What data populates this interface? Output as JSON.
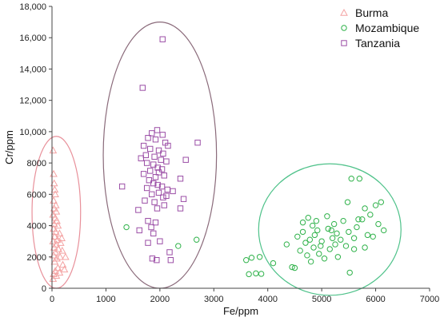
{
  "chart_data": {
    "type": "scatter",
    "xlabel": "Fe/ppm",
    "ylabel": "Cr/ppm",
    "xlim": [
      0,
      7000
    ],
    "ylim": [
      0,
      18000
    ],
    "xticks": [
      0,
      1000,
      2000,
      3000,
      4000,
      5000,
      6000,
      7000
    ],
    "yticks": [
      0,
      2000,
      4000,
      6000,
      8000,
      10000,
      12000,
      14000,
      16000,
      18000
    ],
    "xtick_labels": [
      "0",
      "1000",
      "2000",
      "3000",
      "4000",
      "5000",
      "6000",
      "7000"
    ],
    "ytick_labels": [
      "0",
      "2000",
      "4000",
      "6000",
      "8000",
      "10,000",
      "12,000",
      "14,000",
      "16,000",
      "18,000"
    ],
    "grid": false,
    "legend_position": "top-right",
    "series": [
      {
        "name": "Burma",
        "marker": "triangle",
        "color": "#f4a3a3",
        "points": [
          [
            20,
            8800
          ],
          [
            30,
            7300
          ],
          [
            40,
            6700
          ],
          [
            50,
            6300
          ],
          [
            60,
            6000
          ],
          [
            30,
            5600
          ],
          [
            70,
            5300
          ],
          [
            40,
            5100
          ],
          [
            80,
            4900
          ],
          [
            20,
            4700
          ],
          [
            60,
            4500
          ],
          [
            90,
            4300
          ],
          [
            40,
            4100
          ],
          [
            110,
            4000
          ],
          [
            30,
            3800
          ],
          [
            70,
            3600
          ],
          [
            140,
            3500
          ],
          [
            50,
            3300
          ],
          [
            100,
            3100
          ],
          [
            20,
            3000
          ],
          [
            160,
            2900
          ],
          [
            80,
            2800
          ],
          [
            40,
            2600
          ],
          [
            120,
            2500
          ],
          [
            190,
            2400
          ],
          [
            60,
            2300
          ],
          [
            30,
            2100
          ],
          [
            150,
            2000
          ],
          [
            90,
            1900
          ],
          [
            50,
            1700
          ],
          [
            200,
            1500
          ],
          [
            110,
            1300
          ],
          [
            60,
            1100
          ],
          [
            30,
            900
          ],
          [
            140,
            1000
          ],
          [
            250,
            2000
          ],
          [
            80,
            800
          ],
          [
            20,
            600
          ],
          [
            180,
            3200
          ],
          [
            230,
            1200
          ]
        ]
      },
      {
        "name": "Mozambique",
        "marker": "circle",
        "color": "#2fb24a",
        "points": [
          [
            1380,
            3900
          ],
          [
            2340,
            2700
          ],
          [
            2680,
            3100
          ],
          [
            3600,
            1800
          ],
          [
            3700,
            1950
          ],
          [
            3850,
            2000
          ],
          [
            3650,
            900
          ],
          [
            3780,
            950
          ],
          [
            3880,
            920
          ],
          [
            4100,
            1600
          ],
          [
            4350,
            2800
          ],
          [
            4450,
            1350
          ],
          [
            4500,
            1300
          ],
          [
            4550,
            3300
          ],
          [
            4600,
            2400
          ],
          [
            4650,
            3600
          ],
          [
            4650,
            4200
          ],
          [
            4700,
            2900
          ],
          [
            4730,
            2100
          ],
          [
            4750,
            4500
          ],
          [
            4780,
            3100
          ],
          [
            4800,
            1700
          ],
          [
            4830,
            4000
          ],
          [
            4850,
            2600
          ],
          [
            4870,
            3400
          ],
          [
            4900,
            4300
          ],
          [
            4920,
            3700
          ],
          [
            4950,
            2200
          ],
          [
            5000,
            3000
          ],
          [
            5050,
            1900
          ],
          [
            5100,
            4600
          ],
          [
            5120,
            3800
          ],
          [
            5150,
            2500
          ],
          [
            5200,
            3200
          ],
          [
            5230,
            4100
          ],
          [
            5250,
            2800
          ],
          [
            5280,
            3500
          ],
          [
            5300,
            2000
          ],
          [
            5350,
            3100
          ],
          [
            5400,
            4300
          ],
          [
            5450,
            2700
          ],
          [
            5500,
            3600
          ],
          [
            5520,
            1000
          ],
          [
            5550,
            7000
          ],
          [
            5600,
            2500
          ],
          [
            5650,
            3900
          ],
          [
            5700,
            7000
          ],
          [
            5750,
            4400
          ],
          [
            5800,
            2600
          ],
          [
            5850,
            3400
          ],
          [
            5900,
            4700
          ],
          [
            5950,
            3300
          ],
          [
            6000,
            5300
          ],
          [
            6050,
            4100
          ],
          [
            6100,
            5500
          ],
          [
            6150,
            3700
          ],
          [
            5680,
            4400
          ],
          [
            5480,
            5500
          ],
          [
            4980,
            2700
          ],
          [
            5180,
            3700
          ],
          [
            5600,
            3200
          ],
          [
            5800,
            5100
          ]
        ]
      },
      {
        "name": "Tanzania",
        "marker": "square",
        "color": "#9b4ea6",
        "points": [
          [
            2050,
            15900
          ],
          [
            1680,
            12800
          ],
          [
            1300,
            6500
          ],
          [
            1600,
            5000
          ],
          [
            2700,
            9300
          ],
          [
            2480,
            8200
          ],
          [
            1950,
            10100
          ],
          [
            1850,
            9900
          ],
          [
            2050,
            9800
          ],
          [
            1780,
            9600
          ],
          [
            1920,
            9500
          ],
          [
            2100,
            9300
          ],
          [
            1700,
            9100
          ],
          [
            2150,
            9100
          ],
          [
            1820,
            8900
          ],
          [
            1980,
            8800
          ],
          [
            2060,
            8600
          ],
          [
            1740,
            8500
          ],
          [
            1900,
            8400
          ],
          [
            1650,
            8300
          ],
          [
            2020,
            8200
          ],
          [
            2120,
            8100
          ],
          [
            1760,
            8000
          ],
          [
            1880,
            7900
          ],
          [
            1960,
            7700
          ],
          [
            2040,
            7600
          ],
          [
            1820,
            7500
          ],
          [
            1700,
            7300
          ],
          [
            2080,
            7200
          ],
          [
            1920,
            7100
          ],
          [
            2380,
            7000
          ],
          [
            1800,
            6900
          ],
          [
            1880,
            6700
          ],
          [
            1960,
            6600
          ],
          [
            2040,
            6500
          ],
          [
            1760,
            6400
          ],
          [
            2140,
            6300
          ],
          [
            2240,
            6200
          ],
          [
            1980,
            6100
          ],
          [
            1850,
            6000
          ],
          [
            2060,
            5800
          ],
          [
            2440,
            5700
          ],
          [
            1720,
            5600
          ],
          [
            1900,
            5500
          ],
          [
            2080,
            5300
          ],
          [
            1950,
            5100
          ],
          [
            2380,
            5100
          ],
          [
            1780,
            4300
          ],
          [
            1920,
            4200
          ],
          [
            1620,
            3700
          ],
          [
            1880,
            3500
          ],
          [
            2000,
            3000
          ],
          [
            1780,
            2900
          ],
          [
            2180,
            2300
          ],
          [
            1860,
            1900
          ],
          [
            1940,
            1800
          ],
          [
            2200,
            1800
          ],
          [
            1980,
            7400
          ],
          [
            2120,
            5900
          ],
          [
            1840,
            3900
          ]
        ]
      }
    ],
    "ellipses": [
      {
        "series": "Burma",
        "cx": 80,
        "cy": 4850,
        "rx": 450,
        "ry": 4850,
        "color": "#e8909a"
      },
      {
        "series": "Tanzania",
        "cx": 2000,
        "cy": 8500,
        "rx": 1050,
        "ry": 8500,
        "color": "#8a6a7a"
      },
      {
        "series": "Mozambique",
        "cx": 5150,
        "cy": 3750,
        "rx": 1320,
        "ry": 4200,
        "color": "#4fc28a"
      }
    ]
  }
}
